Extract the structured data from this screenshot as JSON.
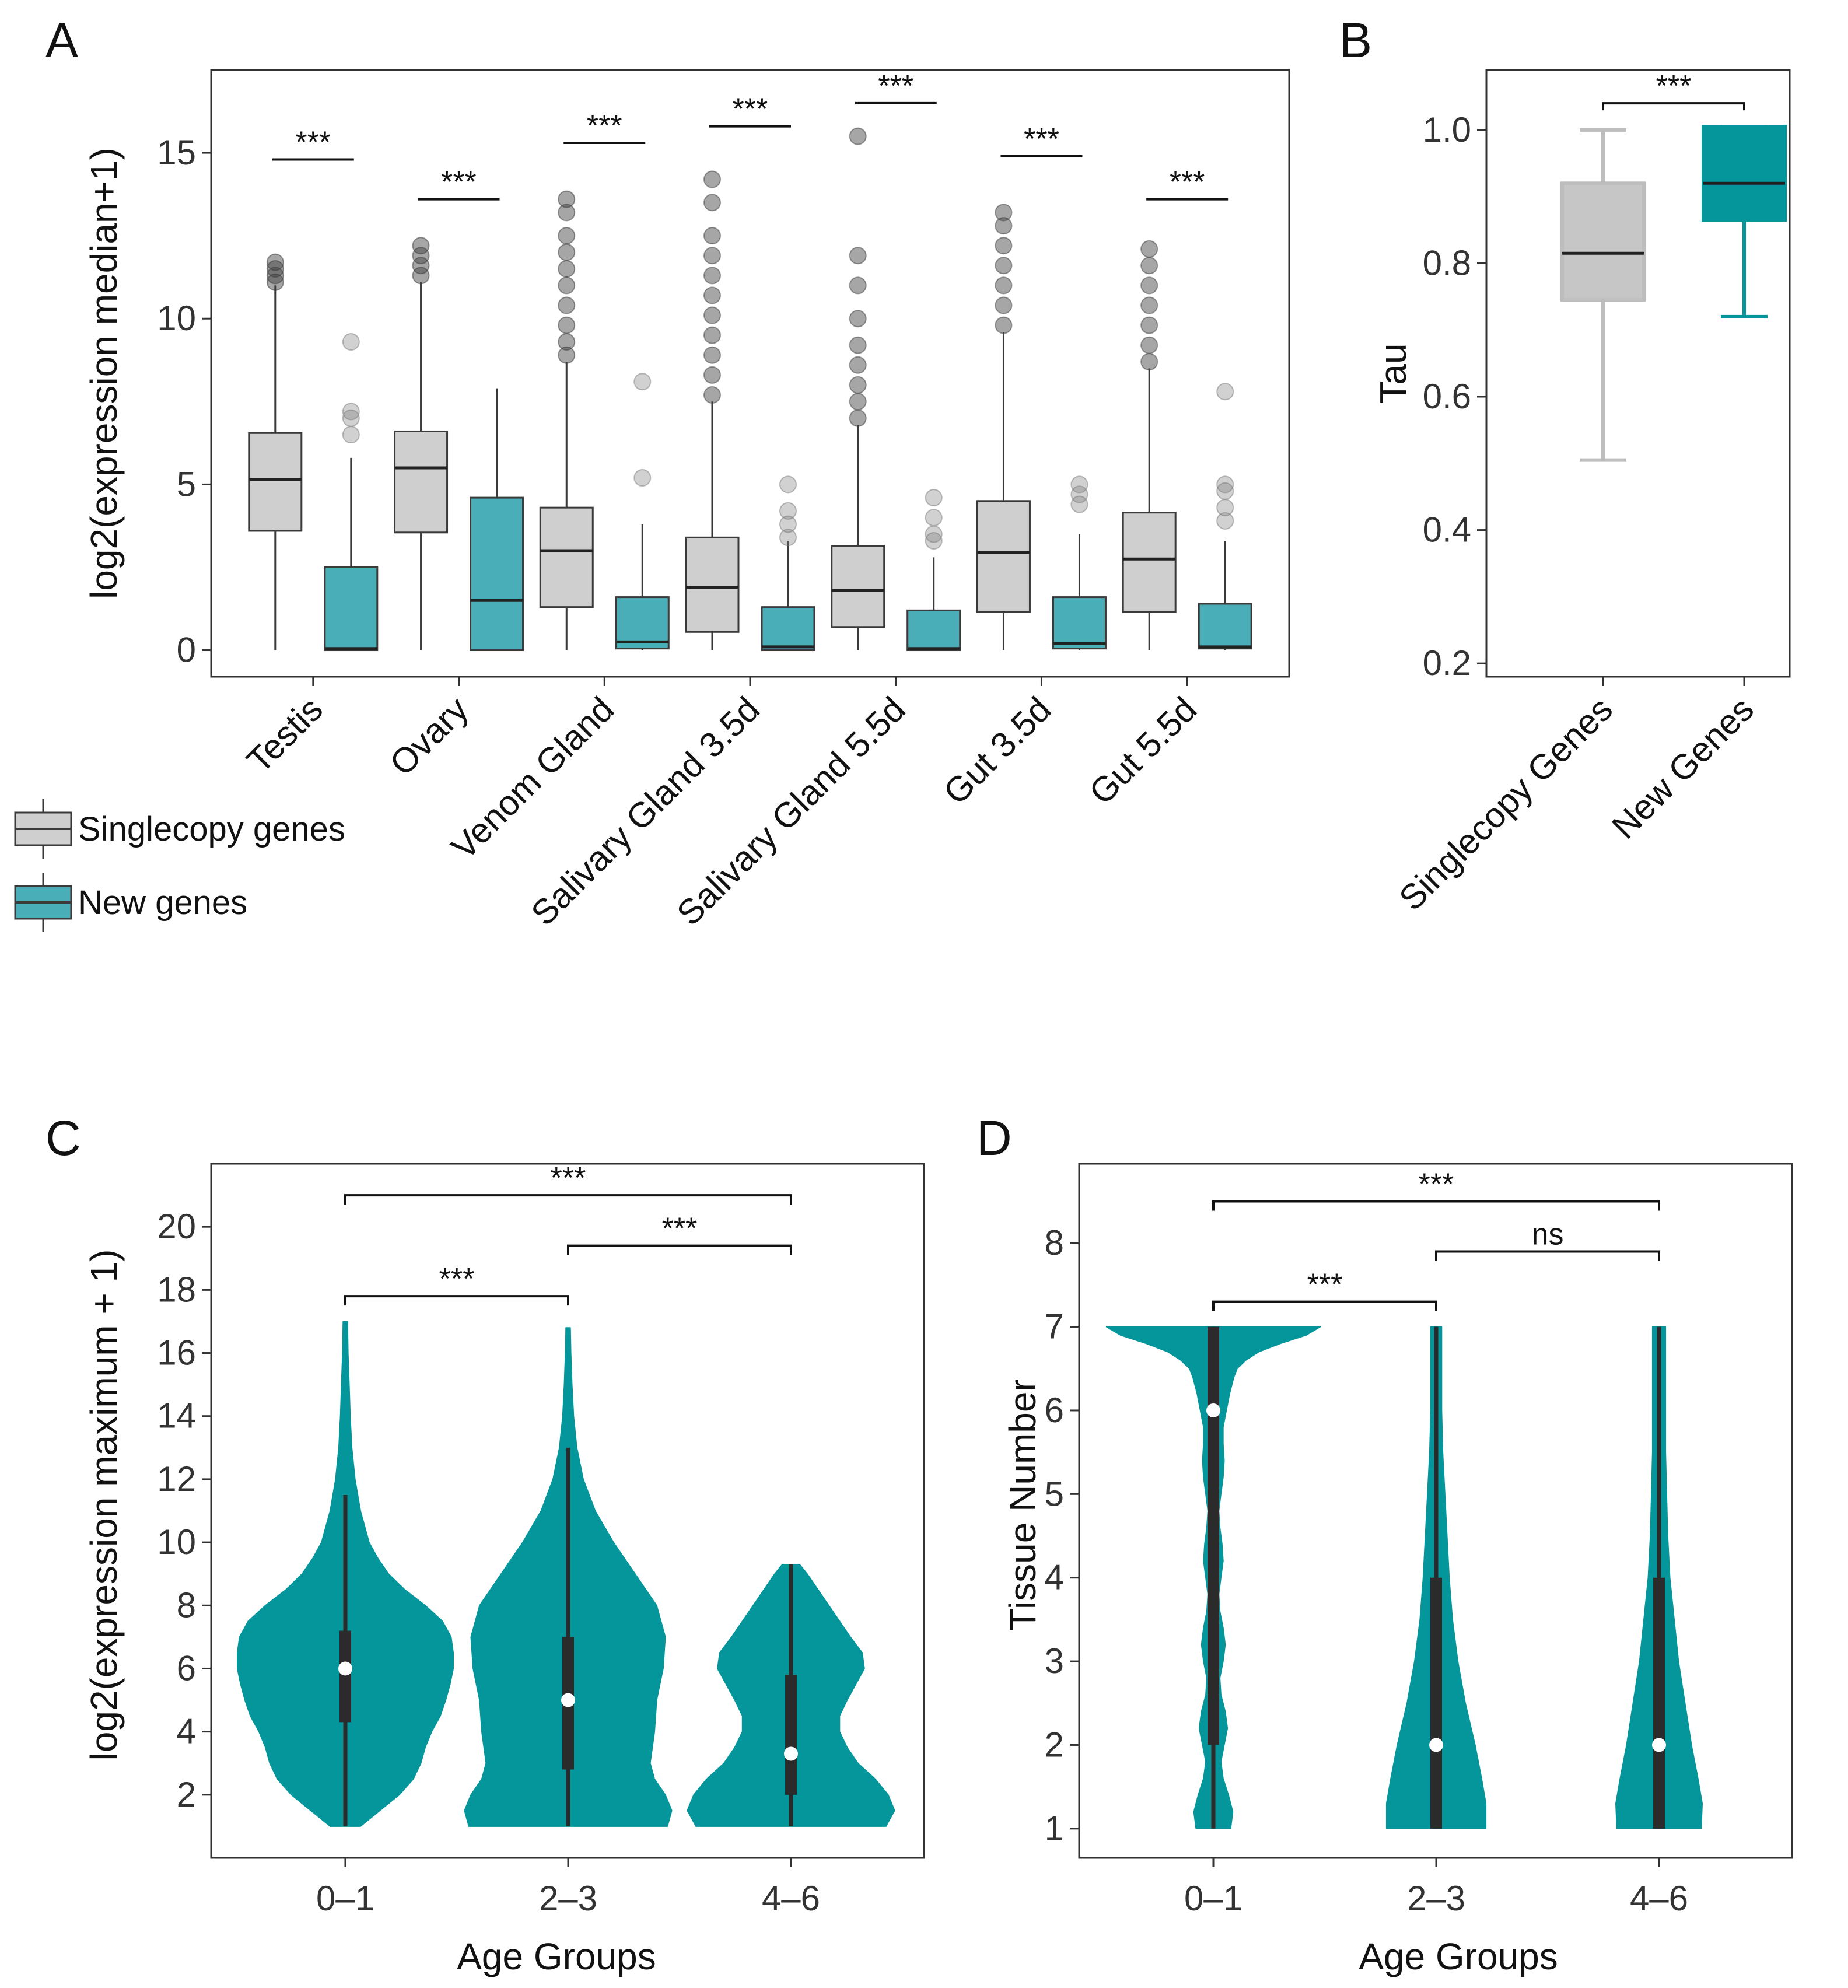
{
  "colors": {
    "singlecopy_fill": "#cfcfcf",
    "singlecopy_stroke": "#3a3a3a",
    "new_fill": "#4aaeb8",
    "teal": "#05969c",
    "tau_single_fill": "#c6c6c6",
    "tau_single_stroke": "#bdbdbd",
    "outlier_single": "#3a3a3a",
    "outlier_new": "#7a7a7a"
  },
  "chart_data": [
    {
      "panel": "A",
      "type": "boxplot",
      "ylabel": "log2(expression median+1)",
      "ylim": [
        -0.8,
        17.5
      ],
      "yticks": [
        0,
        5,
        10,
        15
      ],
      "categories": [
        "Testis",
        "Ovary",
        "Venom Gland",
        "Salivary Gland 3.5d",
        "Salivary Gland 5.5d",
        "Gut 3.5d",
        "Gut 5.5d"
      ],
      "legend": [
        {
          "name": "Singlecopy genes",
          "color": "#cfcfcf"
        },
        {
          "name": "New genes",
          "color": "#4aaeb8"
        }
      ],
      "series": [
        {
          "name": "Singlecopy genes",
          "boxes": [
            {
              "min": 0,
              "q1": 3.6,
              "median": 5.15,
              "q3": 6.55,
              "max": 11.0,
              "outliers": [
                11.1,
                11.3,
                11.5,
                11.7
              ]
            },
            {
              "min": 0,
              "q1": 3.55,
              "median": 5.5,
              "q3": 6.6,
              "max": 11.1,
              "outliers": [
                11.3,
                11.6,
                11.9,
                12.2
              ]
            },
            {
              "min": 0,
              "q1": 1.3,
              "median": 3.0,
              "q3": 4.3,
              "max": 8.7,
              "outliers": [
                8.9,
                9.3,
                9.8,
                10.4,
                11.0,
                11.5,
                12.0,
                12.5,
                13.2,
                13.6
              ]
            },
            {
              "min": 0,
              "q1": 0.55,
              "median": 1.9,
              "q3": 3.4,
              "max": 7.5,
              "outliers": [
                7.7,
                8.3,
                8.9,
                9.5,
                10.1,
                10.7,
                11.3,
                11.9,
                12.5,
                13.5,
                14.2
              ]
            },
            {
              "min": 0,
              "q1": 0.7,
              "median": 1.8,
              "q3": 3.15,
              "max": 6.8,
              "outliers": [
                7.0,
                7.5,
                8.0,
                8.6,
                9.2,
                10.0,
                11.0,
                11.9,
                15.5
              ]
            },
            {
              "min": 0,
              "q1": 1.15,
              "median": 2.95,
              "q3": 4.5,
              "max": 9.6,
              "outliers": [
                9.8,
                10.4,
                11.0,
                11.6,
                12.2,
                12.8,
                13.2
              ]
            },
            {
              "min": 0,
              "q1": 1.15,
              "median": 2.75,
              "q3": 4.15,
              "max": 8.5,
              "outliers": [
                8.7,
                9.2,
                9.8,
                10.4,
                11.0,
                11.6,
                12.1
              ]
            }
          ]
        },
        {
          "name": "New genes",
          "boxes": [
            {
              "min": 0,
              "q1": 0,
              "median": 0.05,
              "q3": 2.5,
              "max": 5.8,
              "outliers": [
                6.5,
                7.0,
                7.2,
                9.3
              ]
            },
            {
              "min": 0,
              "q1": 0,
              "median": 1.5,
              "q3": 4.6,
              "max": 7.9,
              "outliers": []
            },
            {
              "min": 0,
              "q1": 0.05,
              "median": 0.25,
              "q3": 1.6,
              "max": 3.8,
              "outliers": [
                5.2,
                8.1
              ]
            },
            {
              "min": 0,
              "q1": 0,
              "median": 0.1,
              "q3": 1.3,
              "max": 3.3,
              "outliers": [
                3.4,
                3.8,
                4.2,
                5.0
              ]
            },
            {
              "min": 0,
              "q1": 0,
              "median": 0.05,
              "q3": 1.2,
              "max": 2.8,
              "outliers": [
                3.3,
                3.5,
                4.0,
                4.6
              ]
            },
            {
              "min": 0,
              "q1": 0.05,
              "median": 0.2,
              "q3": 1.6,
              "max": 3.5,
              "outliers": [
                4.4,
                4.7,
                5.0
              ]
            },
            {
              "min": 0,
              "q1": 0.05,
              "median": 0.1,
              "q3": 1.4,
              "max": 3.3,
              "outliers": [
                3.9,
                4.3,
                4.8,
                5.0,
                7.8
              ]
            }
          ]
        }
      ],
      "significance": [
        {
          "category": 0,
          "label": "***",
          "y": 14.8
        },
        {
          "category": 1,
          "label": "***",
          "y": 13.6
        },
        {
          "category": 2,
          "label": "***",
          "y": 15.3
        },
        {
          "category": 3,
          "label": "***",
          "y": 15.8
        },
        {
          "category": 4,
          "label": "***",
          "y": 16.5
        },
        {
          "category": 5,
          "label": "***",
          "y": 14.9
        },
        {
          "category": 6,
          "label": "***",
          "y": 13.6
        }
      ]
    },
    {
      "panel": "B",
      "type": "boxplot",
      "ylabel": "Tau",
      "ylim": [
        0.18,
        1.09
      ],
      "yticks": [
        "0.2",
        "0.4",
        "0.6",
        "0.8",
        "1.0"
      ],
      "categories": [
        "Singlecopy Genes",
        "New Genes"
      ],
      "boxes": [
        {
          "min": 0.505,
          "q1": 0.745,
          "median": 0.815,
          "q3": 0.92,
          "max": 1.0
        },
        {
          "min": 0.72,
          "q1": 0.865,
          "median": 0.92,
          "q3": 1.005,
          "max": 1.005
        }
      ],
      "significance": [
        {
          "from": 0,
          "to": 1,
          "label": "***",
          "y": 1.04
        }
      ]
    },
    {
      "panel": "C",
      "type": "violin",
      "xlabel": "Age Groups",
      "ylabel": "log2(expression maximum + 1)",
      "ylim": [
        0,
        22
      ],
      "yticks": [
        2,
        4,
        6,
        8,
        10,
        12,
        14,
        16,
        18,
        20
      ],
      "categories": [
        "0–1",
        "2–3",
        "4–6"
      ],
      "violins": [
        {
          "median": 6.0,
          "q1": 4.3,
          "q3": 7.2,
          "whisker_low": 1.0,
          "whisker_high": 11.5,
          "profile": [
            [
              1.0,
              0.14
            ],
            [
              1.5,
              0.32
            ],
            [
              2.0,
              0.5
            ],
            [
              2.5,
              0.63
            ],
            [
              3.0,
              0.7
            ],
            [
              3.5,
              0.74
            ],
            [
              4.0,
              0.8
            ],
            [
              4.5,
              0.88
            ],
            [
              5.0,
              0.93
            ],
            [
              5.5,
              0.97
            ],
            [
              6.0,
              1.0
            ],
            [
              6.5,
              1.0
            ],
            [
              7.0,
              0.98
            ],
            [
              7.5,
              0.9
            ],
            [
              8.0,
              0.74
            ],
            [
              8.5,
              0.55
            ],
            [
              9.0,
              0.4
            ],
            [
              9.5,
              0.3
            ],
            [
              10.0,
              0.22
            ],
            [
              11.0,
              0.14
            ],
            [
              12.0,
              0.09
            ],
            [
              13.0,
              0.06
            ],
            [
              14.0,
              0.045
            ],
            [
              15.0,
              0.035
            ],
            [
              16.0,
              0.025
            ],
            [
              17.0,
              0.02
            ]
          ]
        },
        {
          "median": 5.0,
          "q1": 2.8,
          "q3": 7.0,
          "whisker_low": 1.0,
          "whisker_high": 13.0,
          "profile": [
            [
              1.0,
              0.92
            ],
            [
              1.5,
              0.96
            ],
            [
              2.0,
              0.9
            ],
            [
              2.5,
              0.8
            ],
            [
              3.0,
              0.76
            ],
            [
              3.5,
              0.78
            ],
            [
              4.0,
              0.8
            ],
            [
              5.0,
              0.82
            ],
            [
              6.0,
              0.88
            ],
            [
              7.0,
              0.9
            ],
            [
              8.0,
              0.82
            ],
            [
              9.0,
              0.62
            ],
            [
              10.0,
              0.42
            ],
            [
              11.0,
              0.25
            ],
            [
              12.0,
              0.14
            ],
            [
              13.0,
              0.08
            ],
            [
              14.0,
              0.05
            ],
            [
              15.0,
              0.035
            ],
            [
              16.0,
              0.025
            ],
            [
              16.8,
              0.02
            ]
          ]
        },
        {
          "median": 3.3,
          "q1": 2.0,
          "q3": 5.8,
          "whisker_low": 1.0,
          "whisker_high": 9.3,
          "profile": [
            [
              1.0,
              0.88
            ],
            [
              1.5,
              0.96
            ],
            [
              2.0,
              0.9
            ],
            [
              2.5,
              0.78
            ],
            [
              3.0,
              0.62
            ],
            [
              3.5,
              0.52
            ],
            [
              4.0,
              0.45
            ],
            [
              4.5,
              0.45
            ],
            [
              5.0,
              0.52
            ],
            [
              5.5,
              0.6
            ],
            [
              6.0,
              0.68
            ],
            [
              6.5,
              0.66
            ],
            [
              7.0,
              0.55
            ],
            [
              7.5,
              0.45
            ],
            [
              8.0,
              0.35
            ],
            [
              8.5,
              0.25
            ],
            [
              9.0,
              0.15
            ],
            [
              9.3,
              0.08
            ]
          ]
        }
      ],
      "significance": [
        {
          "from": 0,
          "to": 1,
          "label": "***",
          "y": 17.8
        },
        {
          "from": 1,
          "to": 2,
          "label": "***",
          "y": 19.4
        },
        {
          "from": 0,
          "to": 2,
          "label": "***",
          "y": 21.0
        }
      ]
    },
    {
      "panel": "D",
      "type": "violin",
      "xlabel": "Age Groups",
      "ylabel": "Tissue Number",
      "ylim": [
        0.65,
        8.95
      ],
      "yticks": [
        1,
        2,
        3,
        4,
        5,
        6,
        7,
        8
      ],
      "categories": [
        "0–1",
        "2–3",
        "4–6"
      ],
      "violins": [
        {
          "median": 6.0,
          "q1": 2.0,
          "q3": 7.0,
          "whisker_low": 1.0,
          "whisker_high": 7.0,
          "profile": [
            [
              1.0,
              0.16
            ],
            [
              1.2,
              0.18
            ],
            [
              1.4,
              0.14
            ],
            [
              1.6,
              0.09
            ],
            [
              1.8,
              0.07
            ],
            [
              2.0,
              0.1
            ],
            [
              2.2,
              0.13
            ],
            [
              2.4,
              0.11
            ],
            [
              2.6,
              0.07
            ],
            [
              2.8,
              0.06
            ],
            [
              3.0,
              0.09
            ],
            [
              3.2,
              0.11
            ],
            [
              3.4,
              0.09
            ],
            [
              3.6,
              0.06
            ],
            [
              3.8,
              0.05
            ],
            [
              4.0,
              0.07
            ],
            [
              4.2,
              0.09
            ],
            [
              4.4,
              0.08
            ],
            [
              4.6,
              0.06
            ],
            [
              4.8,
              0.05
            ],
            [
              5.0,
              0.07
            ],
            [
              5.2,
              0.09
            ],
            [
              5.4,
              0.1
            ],
            [
              5.6,
              0.09
            ],
            [
              5.8,
              0.09
            ],
            [
              6.0,
              0.12
            ],
            [
              6.2,
              0.15
            ],
            [
              6.4,
              0.19
            ],
            [
              6.5,
              0.22
            ],
            [
              6.6,
              0.3
            ],
            [
              6.7,
              0.42
            ],
            [
              6.8,
              0.62
            ],
            [
              6.9,
              0.86
            ],
            [
              7.0,
              0.99
            ]
          ]
        },
        {
          "median": 2.0,
          "q1": 1.0,
          "q3": 4.0,
          "whisker_low": 1.0,
          "whisker_high": 7.0,
          "profile": [
            [
              1.0,
              0.46
            ],
            [
              1.3,
              0.46
            ],
            [
              1.6,
              0.42
            ],
            [
              2.0,
              0.36
            ],
            [
              2.5,
              0.27
            ],
            [
              3.0,
              0.2
            ],
            [
              3.5,
              0.15
            ],
            [
              4.0,
              0.12
            ],
            [
              4.5,
              0.1
            ],
            [
              5.0,
              0.08
            ],
            [
              5.5,
              0.06
            ],
            [
              6.0,
              0.05
            ],
            [
              6.5,
              0.05
            ],
            [
              7.0,
              0.05
            ]
          ]
        },
        {
          "median": 2.0,
          "q1": 1.0,
          "q3": 4.0,
          "whisker_low": 1.0,
          "whisker_high": 7.0,
          "profile": [
            [
              1.0,
              0.39
            ],
            [
              1.3,
              0.4
            ],
            [
              1.6,
              0.36
            ],
            [
              2.0,
              0.3
            ],
            [
              2.5,
              0.24
            ],
            [
              3.0,
              0.18
            ],
            [
              3.5,
              0.14
            ],
            [
              4.0,
              0.1
            ],
            [
              4.5,
              0.08
            ],
            [
              5.0,
              0.07
            ],
            [
              5.5,
              0.06
            ],
            [
              6.0,
              0.06
            ],
            [
              6.5,
              0.06
            ],
            [
              7.0,
              0.06
            ]
          ]
        }
      ],
      "significance": [
        {
          "from": 0,
          "to": 1,
          "label": "***",
          "y": 7.3
        },
        {
          "from": 1,
          "to": 2,
          "label": "ns",
          "y": 7.9
        },
        {
          "from": 0,
          "to": 2,
          "label": "***",
          "y": 8.5
        }
      ]
    }
  ]
}
